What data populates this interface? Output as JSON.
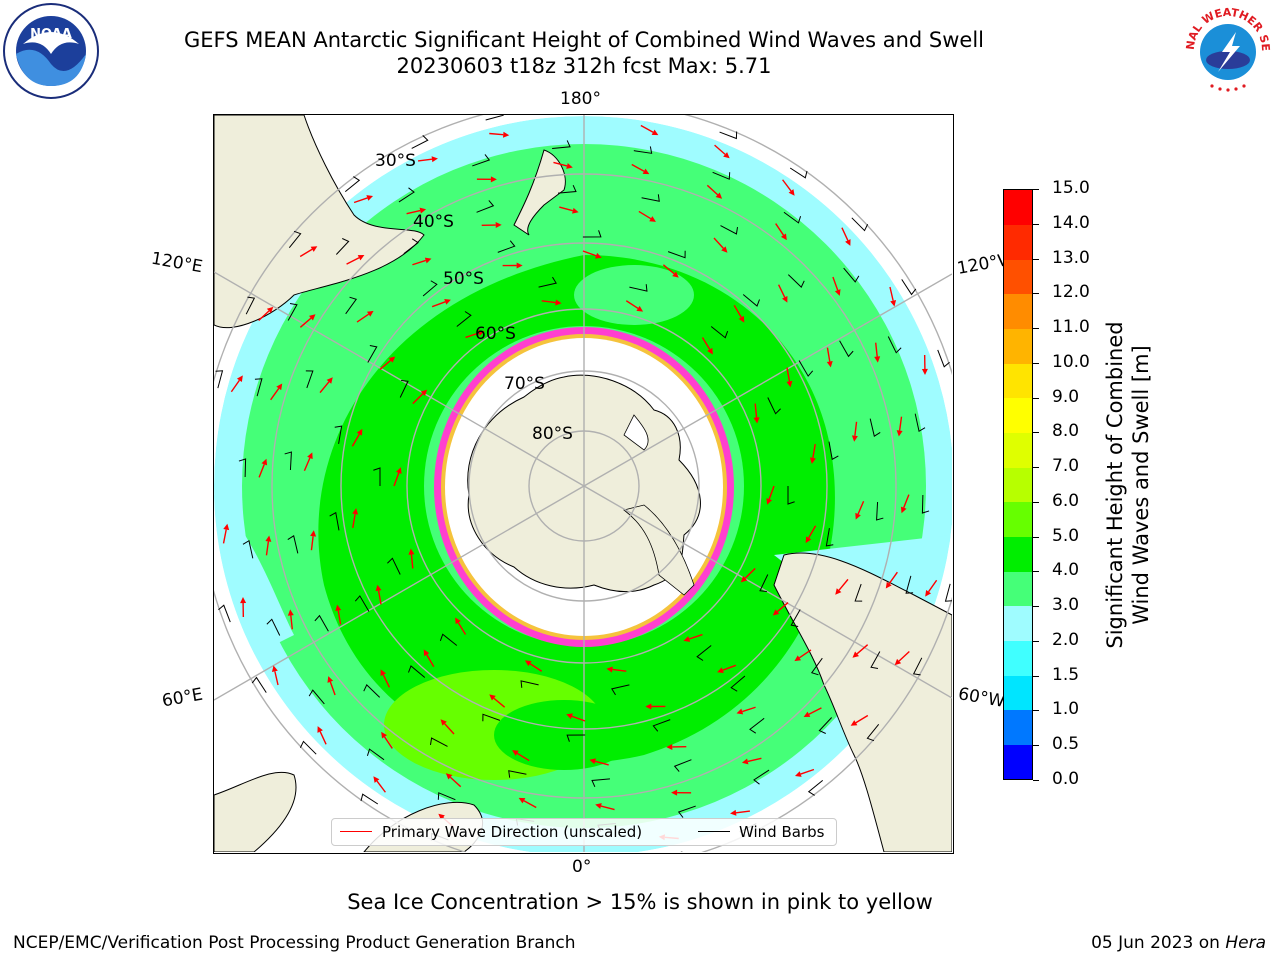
{
  "title": {
    "line1": "GEFS MEAN Antarctic Significant Height of Combined Wind Waves and Swell",
    "line2": "20230603 t18z 312h fcst   Max: 5.71"
  },
  "map": {
    "projection": "south-polar-stereographic",
    "lon_labels": {
      "top": "180°",
      "bottom": "0°",
      "left_upper": "120°E",
      "left_lower": "60°E",
      "right_upper": "120°W",
      "right_lower": "60°W"
    },
    "lat_labels": [
      "30°S",
      "40°S",
      "50°S",
      "60°S",
      "70°S",
      "80°S"
    ],
    "colors": {
      "land": "#efeedb",
      "ice": "#ff3fcf",
      "ice_edge": "#f5c33c",
      "grid": "#b0b0b0",
      "arrow": "#ff0000",
      "barb": "#000000"
    }
  },
  "colorbar": {
    "label": "Significant Height of Combined Wind Waves and Swell [m]",
    "label_line1": "Significant Height of Combined",
    "label_line2": "Wind Waves and Swell [m]",
    "ticks": [
      "0.0",
      "0.5",
      "1.0",
      "1.5",
      "2.0",
      "3.0",
      "4.0",
      "5.0",
      "6.0",
      "7.0",
      "8.0",
      "9.0",
      "10.0",
      "11.0",
      "12.0",
      "13.0",
      "14.0",
      "15.0"
    ],
    "colors": [
      "#0000ff",
      "#0078ff",
      "#00e5ff",
      "#40ffff",
      "#9ffcff",
      "#45ff78",
      "#00ee00",
      "#66ff00",
      "#b7ff00",
      "#dfff00",
      "#ffff00",
      "#ffe400",
      "#ffb400",
      "#ff8c00",
      "#ff5000",
      "#ff2a00",
      "#ff0000"
    ]
  },
  "legend": {
    "wave_label": "Primary Wave Direction (unscaled)",
    "barb_label": "Wind Barbs"
  },
  "note": "Sea Ice Concentration > 15% is shown in pink to yellow",
  "footer": {
    "left": "NCEP/EMC/Verification Post Processing Product Generation Branch",
    "right_date": "05 Jun 2023 on",
    "right_host": "Hera"
  },
  "logos": {
    "left": "NOAA",
    "right": "NATIONAL WEATHER SERVICE"
  }
}
